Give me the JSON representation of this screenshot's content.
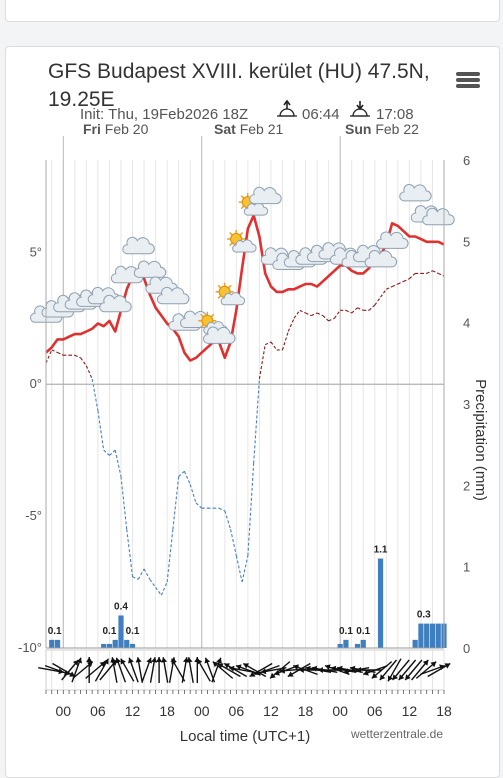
{
  "title": "GFS Budapest XVIII. kerület (HU) 47.5N, 19.25E",
  "init_prefix": "Init: Thu, 19Feb2026 18Z",
  "sunrise": "06:44",
  "sunset": "17:08",
  "days": [
    {
      "abbr": "Fri",
      "date": "Feb 20"
    },
    {
      "abbr": "Sat",
      "date": "Feb 21"
    },
    {
      "abbr": "Sun",
      "date": "Feb 22"
    }
  ],
  "credit": "wetterzentrale.de",
  "colors": {
    "temperature": "#e03030",
    "dewpoint": "#8b1a1a",
    "cold": "#4a7fc0",
    "precip": "#3f7fbf",
    "wind": "#111111",
    "grid": "#e6e6e6"
  },
  "chart_data": {
    "type": "line",
    "xlabel": "Local time (UTC+1)",
    "ylabel_right": "Precipitation (mm)",
    "x_ticks": [
      "00",
      "06",
      "12",
      "18",
      "00",
      "06",
      "12",
      "18",
      "00",
      "06",
      "12",
      "18"
    ],
    "ylim_temp": [
      -10,
      8.5
    ],
    "temp_ticks": [
      "-10°",
      "-5°",
      "0°",
      "5°"
    ],
    "ylim_precip": [
      0,
      6
    ],
    "precip_ticks": [
      "0",
      "1",
      "2",
      "3",
      "4",
      "5",
      "6"
    ],
    "x_hours": [
      -3,
      -2,
      -1,
      0,
      1,
      2,
      3,
      4,
      5,
      6,
      7,
      8,
      9,
      10,
      11,
      12,
      13,
      14,
      15,
      16,
      17,
      18,
      19,
      20,
      21,
      22,
      23,
      24,
      25,
      26,
      27,
      28,
      29,
      30,
      31,
      32,
      33,
      34,
      35,
      36,
      37,
      38,
      39,
      40,
      41,
      42,
      43,
      44,
      45,
      46,
      47,
      48,
      49,
      50,
      51,
      52,
      53,
      54,
      55,
      56,
      57,
      58,
      59,
      60,
      61,
      62,
      63,
      64,
      65,
      66
    ],
    "series": [
      {
        "name": "temperature",
        "values": [
          1.2,
          1.4,
          1.7,
          1.7,
          1.8,
          1.9,
          1.9,
          2.0,
          2.1,
          2.3,
          2.2,
          2.4,
          2.0,
          2.8,
          3.6,
          4.1,
          4.1,
          4.0,
          3.4,
          2.9,
          2.6,
          2.3,
          2.1,
          1.8,
          1.2,
          0.9,
          1.0,
          1.2,
          1.4,
          1.6,
          1.6,
          1.0,
          1.6,
          2.8,
          4.4,
          5.9,
          6.4,
          5.6,
          4.2,
          3.7,
          3.5,
          3.5,
          3.6,
          3.6,
          3.7,
          3.8,
          3.8,
          3.7,
          3.9,
          4.1,
          4.3,
          4.5,
          4.5,
          4.3,
          4.2,
          4.2,
          4.4,
          4.7,
          4.9,
          5.3,
          6.1,
          6.0,
          5.8,
          5.6,
          5.6,
          5.5,
          5.4,
          5.4,
          5.4,
          5.3
        ]
      },
      {
        "name": "dewpoint",
        "values": [
          0.8,
          1.3,
          1.2,
          1.1,
          1.1,
          1.1,
          1.0,
          0.7,
          0.2,
          -1.0,
          -2.5,
          -2.7,
          -2.5,
          -3.5,
          -5.5,
          -7.3,
          -7.4,
          -7.0,
          -7.4,
          -7.7,
          -8.0,
          -7.5,
          -5.5,
          -3.5,
          -3.3,
          -3.8,
          -4.5,
          -4.7,
          -4.7,
          -4.7,
          -4.7,
          -4.8,
          -5.5,
          -6.5,
          -7.5,
          -6.5,
          -3.0,
          0.2,
          1.5,
          1.6,
          1.3,
          1.3,
          2.0,
          2.5,
          2.8,
          2.7,
          2.6,
          2.7,
          2.6,
          2.4,
          2.5,
          2.8,
          2.8,
          2.7,
          2.9,
          2.8,
          2.8,
          3.0,
          3.3,
          3.6,
          3.7,
          3.8,
          3.9,
          4.0,
          4.2,
          4.2,
          4.2,
          4.3,
          4.2,
          4.1
        ]
      },
      {
        "name": "precipitation",
        "type": "bar",
        "x_hours": [
          -2,
          -1,
          7,
          8,
          9,
          10,
          11,
          12,
          48,
          49,
          51,
          52,
          55,
          61,
          62,
          63,
          64,
          65,
          66
        ],
        "values": [
          0.1,
          0.1,
          0.05,
          0.05,
          0.1,
          0.4,
          0.1,
          0.05,
          0.05,
          0.1,
          0.05,
          0.1,
          1.1,
          0.1,
          0.3,
          0.3,
          0.3,
          0.3,
          0.3
        ]
      }
    ],
    "precip_labels": [
      {
        "x_hour": -1.5,
        "text": "0.1"
      },
      {
        "x_hour": 8,
        "text": "0.1"
      },
      {
        "x_hour": 10,
        "text": "0.4"
      },
      {
        "x_hour": 12,
        "text": "0.1"
      },
      {
        "x_hour": 49,
        "text": "0.1"
      },
      {
        "x_hour": 52,
        "text": "0.1"
      },
      {
        "x_hour": 55,
        "text": "1.1"
      },
      {
        "x_hour": 62.5,
        "text": "0.3"
      }
    ],
    "weather_icons": [
      {
        "x_hour": -3,
        "temp": 2.5,
        "icon": "cloud-icon"
      },
      {
        "x_hour": -1,
        "temp": 2.7,
        "icon": "cloud-icon"
      },
      {
        "x_hour": 1,
        "temp": 2.9,
        "icon": "cloud-icon"
      },
      {
        "x_hour": 3,
        "temp": 3.0,
        "icon": "cloud-icon"
      },
      {
        "x_hour": 5,
        "temp": 3.1,
        "icon": "cloud-icon"
      },
      {
        "x_hour": 7,
        "temp": 3.2,
        "icon": "cloud-icon"
      },
      {
        "x_hour": 9,
        "temp": 2.9,
        "icon": "cloud-icon"
      },
      {
        "x_hour": 11,
        "temp": 4.0,
        "icon": "cloud-icon"
      },
      {
        "x_hour": 13,
        "temp": 5.1,
        "icon": "cloud-icon"
      },
      {
        "x_hour": 15,
        "temp": 4.2,
        "icon": "cloud-icon"
      },
      {
        "x_hour": 17,
        "temp": 3.6,
        "icon": "cloud-icon"
      },
      {
        "x_hour": 19,
        "temp": 3.2,
        "icon": "cloud-icon"
      },
      {
        "x_hour": 21,
        "temp": 2.2,
        "icon": "cloud-icon"
      },
      {
        "x_hour": 23,
        "temp": 2.3,
        "icon": "cloud-icon"
      },
      {
        "x_hour": 26,
        "temp": 2.1,
        "icon": "sun-cloud-icon"
      },
      {
        "x_hour": 27,
        "temp": 1.7,
        "icon": "cloud-icon"
      },
      {
        "x_hour": 29,
        "temp": 3.2,
        "icon": "sun-cloud-icon"
      },
      {
        "x_hour": 31,
        "temp": 5.2,
        "icon": "sun-cloud-icon"
      },
      {
        "x_hour": 33,
        "temp": 6.6,
        "icon": "sun-cloud-icon"
      },
      {
        "x_hour": 35,
        "temp": 7.0,
        "icon": "cloud-icon"
      },
      {
        "x_hour": 37,
        "temp": 4.7,
        "icon": "cloud-icon"
      },
      {
        "x_hour": 39,
        "temp": 4.5,
        "icon": "cloud-icon"
      },
      {
        "x_hour": 41,
        "temp": 4.6,
        "icon": "cloud-icon"
      },
      {
        "x_hour": 43,
        "temp": 4.7,
        "icon": "cloud-icon"
      },
      {
        "x_hour": 45,
        "temp": 4.8,
        "icon": "cloud-icon"
      },
      {
        "x_hour": 47,
        "temp": 4.9,
        "icon": "cloud-icon"
      },
      {
        "x_hour": 49,
        "temp": 4.7,
        "icon": "cloud-icon"
      },
      {
        "x_hour": 51,
        "temp": 4.6,
        "icon": "cloud-icon"
      },
      {
        "x_hour": 53,
        "temp": 4.8,
        "icon": "cloud-icon"
      },
      {
        "x_hour": 55,
        "temp": 4.6,
        "icon": "cloud-icon"
      },
      {
        "x_hour": 57,
        "temp": 5.3,
        "icon": "cloud-icon"
      },
      {
        "x_hour": 61,
        "temp": 7.1,
        "icon": "cloud-icon"
      },
      {
        "x_hour": 63,
        "temp": 6.3,
        "icon": "cloud-icon"
      },
      {
        "x_hour": 65,
        "temp": 6.2,
        "icon": "cloud-icon"
      }
    ],
    "wind_directions": [
      280,
      290,
      300,
      220,
      200,
      230,
      180,
      230,
      210,
      220,
      170,
      160,
      150,
      160,
      170,
      200,
      190,
      180,
      170,
      190,
      150,
      190,
      170,
      180,
      150,
      160,
      200,
      130,
      120,
      120,
      100,
      110,
      120,
      60,
      70,
      80,
      50,
      70,
      85,
      60,
      110,
      90,
      100,
      100,
      90,
      110,
      100,
      100,
      80,
      100,
      90,
      70,
      50,
      40,
      30,
      40,
      40,
      40,
      220,
      230,
      250,
      240
    ],
    "grid": true
  }
}
